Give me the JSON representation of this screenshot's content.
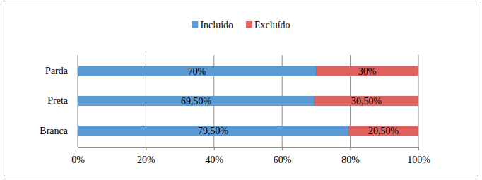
{
  "chart_data": {
    "type": "bar",
    "orientation": "horizontal",
    "stacked": true,
    "data_labels": true,
    "grid": true,
    "legend": "top",
    "categories": [
      "Parda",
      "Preta",
      "Branca"
    ],
    "series": [
      {
        "name": "Incluído",
        "color": "#5b9bd5",
        "values": [
          70,
          69.5,
          79.5
        ],
        "value_labels": [
          "70%",
          "69,50%",
          "79,50%"
        ]
      },
      {
        "name": "Excluído",
        "color": "#e0625f",
        "values": [
          30,
          30.5,
          20.5
        ],
        "value_labels": [
          "30%",
          "30,50%",
          "20,50%"
        ]
      }
    ],
    "xlim": [
      0,
      100
    ],
    "xticks": [
      {
        "value": 0,
        "label": "0%"
      },
      {
        "value": 20,
        "label": "20%"
      },
      {
        "value": 40,
        "label": "40%"
      },
      {
        "value": 60,
        "label": "60%"
      },
      {
        "value": 80,
        "label": "80%"
      },
      {
        "value": 100,
        "label": "100%"
      }
    ]
  }
}
